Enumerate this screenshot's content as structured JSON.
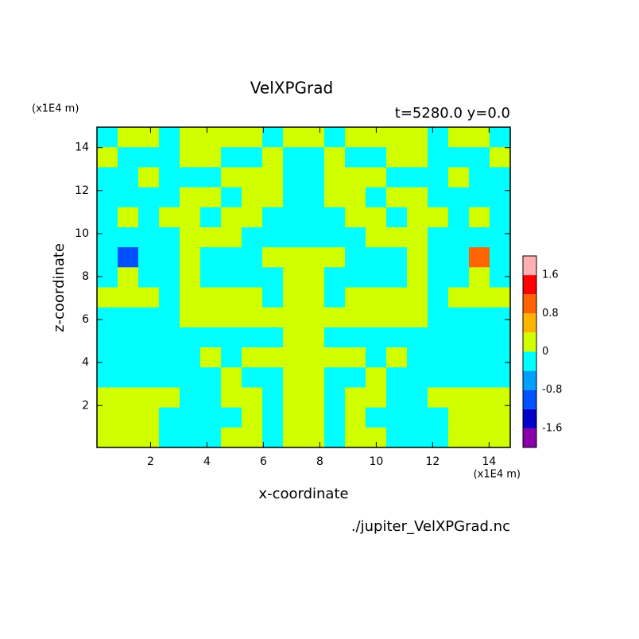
{
  "chart_data": {
    "type": "contour",
    "title": "VelXPGrad",
    "subtitle": "t=5280.0 y=0.0",
    "x_label": "x-coordinate",
    "y_label": "z-coordinate",
    "x_unit": "(x1E4 m)",
    "y_unit": "(x1E4 m)",
    "source": "./jupiter_VelXPGrad.nc",
    "xlim": [
      0.1,
      14.75
    ],
    "ylim": [
      0.05,
      14.95
    ],
    "xticks": [
      2,
      4,
      6,
      8,
      10,
      12,
      14
    ],
    "yticks": [
      2,
      4,
      6,
      8,
      10,
      12,
      14
    ],
    "colorbar": {
      "levels": [
        -2.0,
        -1.6,
        -1.2,
        -0.8,
        -0.4,
        0,
        0.4,
        0.8,
        1.2,
        1.6,
        2.0
      ],
      "colors": [
        "#8a00a8",
        "#0000c8",
        "#0050ff",
        "#00a0ff",
        "#00ffff",
        "#d2ff00",
        "#ffb400",
        "#ff6400",
        "#ff0000",
        "#ffb0b0"
      ],
      "ticks": [
        -1.6,
        -0.8,
        0,
        0.8,
        1.6
      ]
    },
    "z": [
      [
        -0.2,
        0.2,
        0.2,
        -0.2,
        0.2,
        0.2,
        0.2,
        0.2,
        -0.2,
        0.2,
        0.2,
        -0.2,
        0.2,
        0.2,
        0.2,
        0.2,
        -0.2,
        0.2,
        0.2,
        -0.2
      ],
      [
        0.2,
        -0.2,
        -0.2,
        -0.2,
        0.2,
        0.2,
        -0.2,
        -0.2,
        0.2,
        -0.2,
        -0.2,
        0.2,
        -0.2,
        -0.2,
        0.2,
        0.2,
        -0.2,
        -0.2,
        -0.2,
        0.2
      ],
      [
        -0.2,
        -0.2,
        0.2,
        -0.2,
        -0.2,
        -0.2,
        0.2,
        0.2,
        0.2,
        -0.2,
        -0.2,
        0.2,
        0.2,
        0.2,
        -0.2,
        -0.2,
        -0.2,
        0.2,
        -0.2,
        -0.2
      ],
      [
        -0.2,
        -0.2,
        -0.2,
        -0.2,
        0.2,
        0.2,
        -0.2,
        0.2,
        0.2,
        -0.2,
        -0.2,
        0.2,
        0.2,
        -0.2,
        0.2,
        0.2,
        -0.2,
        -0.2,
        -0.2,
        -0.2
      ],
      [
        -0.2,
        0.2,
        -0.2,
        0.2,
        0.2,
        -0.2,
        0.2,
        0.2,
        -0.2,
        -0.2,
        -0.2,
        -0.2,
        0.2,
        0.2,
        -0.2,
        0.2,
        0.2,
        -0.2,
        0.2,
        -0.2
      ],
      [
        -0.2,
        -0.2,
        -0.2,
        -0.2,
        0.2,
        0.2,
        0.2,
        -0.2,
        -0.2,
        -0.2,
        -0.2,
        -0.2,
        -0.2,
        0.2,
        0.2,
        0.2,
        -0.2,
        -0.2,
        -0.2,
        -0.2
      ],
      [
        -0.2,
        -1.0,
        -0.2,
        -0.2,
        0.2,
        -0.2,
        -0.2,
        -0.2,
        0.2,
        0.2,
        0.2,
        0.2,
        -0.2,
        -0.2,
        -0.2,
        0.2,
        -0.2,
        -0.2,
        1.0,
        -0.2
      ],
      [
        -0.2,
        0.2,
        -0.2,
        -0.2,
        0.2,
        -0.2,
        -0.2,
        -0.2,
        -0.2,
        0.2,
        0.2,
        -0.2,
        -0.2,
        -0.2,
        -0.2,
        0.2,
        -0.2,
        -0.2,
        0.2,
        -0.2
      ],
      [
        0.2,
        0.2,
        0.2,
        -0.2,
        0.2,
        0.2,
        0.2,
        0.2,
        -0.2,
        0.2,
        0.2,
        -0.2,
        0.2,
        0.2,
        0.2,
        0.2,
        -0.2,
        0.2,
        0.2,
        0.2
      ],
      [
        -0.2,
        -0.2,
        -0.2,
        -0.2,
        0.2,
        0.2,
        0.2,
        0.2,
        0.2,
        0.2,
        0.2,
        0.2,
        0.2,
        0.2,
        0.2,
        0.2,
        -0.2,
        -0.2,
        -0.2,
        -0.2
      ],
      [
        -0.2,
        -0.2,
        -0.2,
        -0.2,
        -0.2,
        -0.2,
        -0.2,
        -0.2,
        -0.2,
        0.2,
        0.2,
        -0.2,
        -0.2,
        -0.2,
        -0.2,
        -0.2,
        -0.2,
        -0.2,
        -0.2,
        -0.2
      ],
      [
        -0.2,
        -0.2,
        -0.2,
        -0.2,
        -0.2,
        0.2,
        -0.2,
        0.2,
        0.2,
        0.2,
        0.2,
        0.2,
        0.2,
        -0.2,
        0.2,
        -0.2,
        -0.2,
        -0.2,
        -0.2,
        -0.2
      ],
      [
        -0.2,
        -0.2,
        -0.2,
        -0.2,
        -0.2,
        -0.2,
        0.2,
        -0.2,
        -0.2,
        0.2,
        0.2,
        -0.2,
        -0.2,
        0.2,
        -0.2,
        -0.2,
        -0.2,
        -0.2,
        -0.2,
        -0.2
      ],
      [
        0.2,
        0.2,
        0.2,
        0.2,
        -0.2,
        -0.2,
        0.2,
        0.2,
        -0.2,
        0.2,
        0.2,
        -0.2,
        0.2,
        0.2,
        -0.2,
        -0.2,
        0.2,
        0.2,
        0.2,
        0.2
      ],
      [
        0.2,
        0.2,
        0.2,
        -0.2,
        -0.2,
        -0.2,
        -0.2,
        0.2,
        -0.2,
        0.2,
        0.2,
        -0.2,
        0.2,
        -0.2,
        -0.2,
        -0.2,
        -0.2,
        0.2,
        0.2,
        0.2
      ],
      [
        0.2,
        0.2,
        0.2,
        -0.2,
        -0.2,
        -0.2,
        0.2,
        0.2,
        -0.2,
        0.2,
        0.2,
        -0.2,
        0.2,
        0.2,
        -0.2,
        -0.2,
        -0.2,
        0.2,
        0.2,
        0.2
      ]
    ]
  }
}
